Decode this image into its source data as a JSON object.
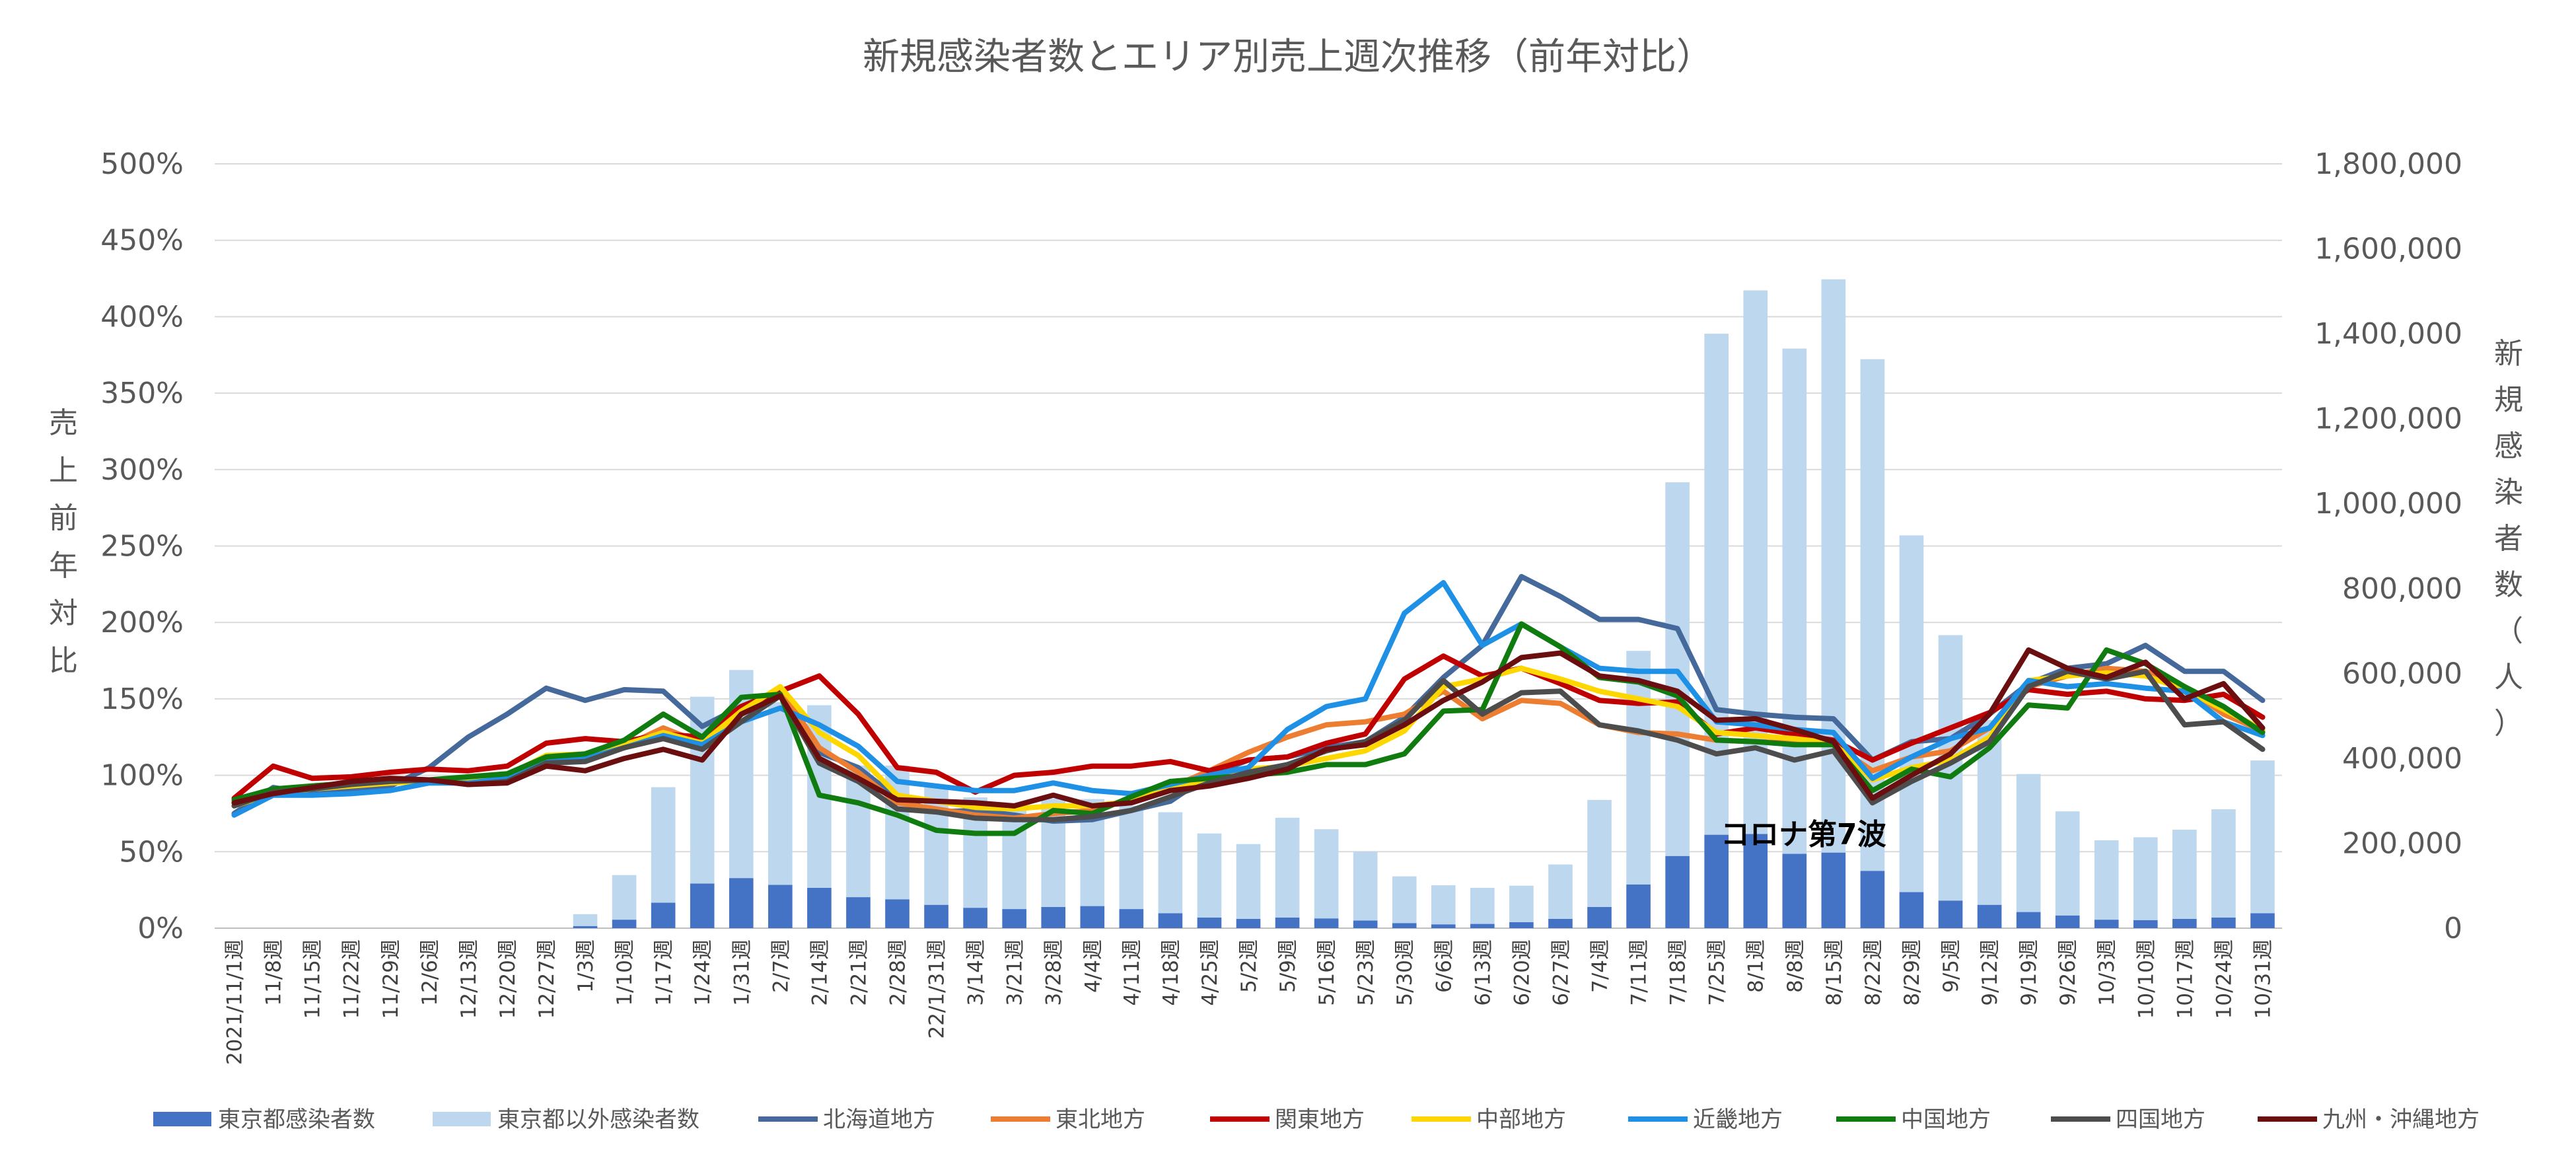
{
  "chart_data": {
    "type": "bar+line",
    "title": "新規感染者数とエリア別売上週次推移（前年対比）",
    "y_left_label": [
      "売",
      "上",
      "前",
      "年",
      "対",
      "比"
    ],
    "y_right_label": [
      "新",
      "規",
      "感",
      "染",
      "者",
      "数",
      "（",
      "人",
      "）"
    ],
    "y_left_range": [
      0,
      500
    ],
    "y_left_ticks": [
      "0%",
      "50%",
      "100%",
      "150%",
      "200%",
      "250%",
      "300%",
      "350%",
      "400%",
      "450%",
      "500%"
    ],
    "y_right_range": [
      0,
      1800000
    ],
    "y_right_ticks": [
      "0",
      "200,000",
      "400,000",
      "600,000",
      "800,000",
      "1,000,000",
      "1,200,000",
      "1,400,000",
      "1,600,000",
      "1,800,000"
    ],
    "categories": [
      "2021/11/1週",
      "11/8週",
      "11/15週",
      "11/22週",
      "11/29週",
      "12/6週",
      "12/13週",
      "12/20週",
      "12/27週",
      "1/3週",
      "1/10週",
      "1/17週",
      "1/24週",
      "1/31週",
      "2/7週",
      "2/14週",
      "2/21週",
      "2/28週",
      "22/1/31週",
      "3/14週",
      "3/21週",
      "3/28週",
      "4/4週",
      "4/11週",
      "4/18週",
      "4/25週",
      "5/2週",
      "5/9週",
      "5/16週",
      "5/23週",
      "5/30週",
      "6/6週",
      "6/13週",
      "6/20週",
      "6/27週",
      "7/4週",
      "7/11週",
      "7/18週",
      "7/25週",
      "8/1週",
      "8/8週",
      "8/15週",
      "8/22週",
      "8/29週",
      "9/5週",
      "9/12週",
      "9/19週",
      "9/26週",
      "10/3週",
      "10/10週",
      "10/17週",
      "10/24週",
      "10/31週"
    ],
    "bar_series": [
      {
        "name": "東京都感染者数",
        "color": "#4472C4",
        "values": [
          0,
          0,
          0,
          0,
          0,
          0,
          0,
          0,
          0,
          5000,
          20000,
          60000,
          105000,
          118000,
          102000,
          95000,
          73000,
          68000,
          55000,
          48000,
          45000,
          50000,
          52000,
          45000,
          35000,
          25000,
          22000,
          25000,
          23000,
          18000,
          12000,
          9000,
          10000,
          14000,
          22000,
          50000,
          103000,
          170000,
          220000,
          222000,
          175000,
          178000,
          135000,
          85000,
          65000,
          55000,
          38000,
          30000,
          20000,
          19000,
          22000,
          25000,
          35000
        ]
      },
      {
        "name": "東京都以外感染者数",
        "color": "#BDD7EE",
        "values": [
          0,
          0,
          0,
          0,
          0,
          0,
          0,
          0,
          0,
          28000,
          105000,
          272000,
          440000,
          490000,
          430000,
          430000,
          310000,
          315000,
          280000,
          260000,
          242000,
          255000,
          252000,
          243000,
          238000,
          198000,
          176000,
          235000,
          210000,
          162000,
          110000,
          92000,
          85000,
          86000,
          128000,
          252000,
          550000,
          880000,
          1180000,
          1280000,
          1190000,
          1350000,
          1205000,
          840000,
          625000,
          435000,
          325000,
          245000,
          187000,
          195000,
          210000,
          255000,
          360000
        ]
      }
    ],
    "line_series": [
      {
        "name": "北海道地方",
        "color": "#44699A",
        "values": [
          75,
          92,
          88,
          91,
          93,
          105,
          125,
          140,
          157,
          149,
          156,
          155,
          132,
          145,
          156,
          115,
          105,
          85,
          76,
          77,
          74,
          70,
          71,
          77,
          83,
          100,
          110,
          112,
          118,
          122,
          138,
          164,
          185,
          230,
          217,
          202,
          202,
          196,
          143,
          140,
          138,
          137,
          110,
          122,
          124,
          140,
          160,
          170,
          173,
          185,
          168,
          168,
          149
        ]
      },
      {
        "name": "東北地方",
        "color": "#ED7D31",
        "values": [
          83,
          90,
          93,
          95,
          97,
          97,
          97,
          99,
          110,
          111,
          119,
          131,
          121,
          141,
          157,
          118,
          102,
          82,
          78,
          74,
          72,
          75,
          77,
          85,
          92,
          103,
          115,
          125,
          133,
          135,
          140,
          155,
          137,
          149,
          147,
          133,
          128,
          127,
          123,
          122,
          121,
          120,
          103,
          112,
          116,
          131,
          158,
          165,
          170,
          168,
          158,
          140,
          129
        ]
      },
      {
        "name": "関東地方",
        "color": "#C00000",
        "values": [
          85,
          106,
          98,
          99,
          102,
          104,
          103,
          106,
          121,
          124,
          122,
          127,
          125,
          145,
          155,
          165,
          140,
          105,
          102,
          89,
          100,
          102,
          106,
          106,
          109,
          103,
          110,
          112,
          121,
          127,
          163,
          178,
          165,
          170,
          160,
          149,
          147,
          148,
          127,
          131,
          127,
          123,
          110,
          121,
          131,
          141,
          156,
          153,
          155,
          150,
          149,
          153,
          138
        ]
      },
      {
        "name": "中部地方",
        "color": "#FFD700",
        "values": [
          80,
          88,
          91,
          93,
          95,
          96,
          97,
          100,
          113,
          114,
          120,
          128,
          121,
          142,
          158,
          128,
          113,
          87,
          83,
          79,
          78,
          80,
          80,
          83,
          92,
          97,
          104,
          106,
          111,
          116,
          129,
          158,
          163,
          170,
          163,
          155,
          150,
          145,
          128,
          126,
          124,
          121,
          97,
          105,
          110,
          125,
          162,
          165,
          167,
          165,
          156,
          143,
          130
        ]
      },
      {
        "name": "近畿地方",
        "color": "#1E90E6",
        "values": [
          74,
          87,
          87,
          88,
          90,
          95,
          95,
          98,
          109,
          111,
          118,
          126,
          120,
          135,
          144,
          133,
          119,
          96,
          93,
          90,
          90,
          95,
          90,
          88,
          94,
          100,
          105,
          130,
          145,
          150,
          206,
          226,
          185,
          199,
          184,
          170,
          168,
          168,
          135,
          133,
          130,
          128,
          98,
          112,
          124,
          131,
          162,
          158,
          160,
          157,
          155,
          135,
          126
        ]
      },
      {
        "name": "中国地方",
        "color": "#107C10",
        "values": [
          84,
          91,
          93,
          95,
          97,
          97,
          99,
          101,
          112,
          114,
          123,
          140,
          125,
          151,
          153,
          87,
          82,
          74,
          64,
          62,
          62,
          77,
          75,
          86,
          96,
          98,
          100,
          102,
          107,
          107,
          114,
          142,
          143,
          199,
          184,
          164,
          161,
          152,
          123,
          122,
          120,
          120,
          90,
          104,
          99,
          118,
          146,
          144,
          182,
          173,
          158,
          145,
          128
        ]
      },
      {
        "name": "四国地方",
        "color": "#4D4D4D",
        "values": [
          80,
          89,
          91,
          94,
          96,
          97,
          94,
          96,
          108,
          109,
          118,
          124,
          117,
          135,
          152,
          108,
          96,
          78,
          76,
          72,
          71,
          71,
          73,
          77,
          86,
          95,
          102,
          107,
          116,
          122,
          136,
          162,
          140,
          154,
          155,
          133,
          129,
          123,
          114,
          118,
          110,
          116,
          82,
          96,
          108,
          122,
          158,
          168,
          163,
          168,
          133,
          135,
          117
        ]
      },
      {
        "name": "九州・沖縄地方",
        "color": "#6B0E10",
        "values": [
          82,
          88,
          92,
          96,
          98,
          97,
          94,
          95,
          106,
          103,
          111,
          117,
          110,
          140,
          152,
          111,
          98,
          84,
          83,
          82,
          80,
          87,
          80,
          82,
          90,
          93,
          98,
          104,
          117,
          120,
          133,
          149,
          161,
          177,
          180,
          165,
          162,
          155,
          136,
          137,
          130,
          122,
          85,
          100,
          114,
          140,
          182,
          170,
          164,
          174,
          150,
          160,
          131
        ]
      }
    ],
    "annotation": "コロナ第7波"
  }
}
